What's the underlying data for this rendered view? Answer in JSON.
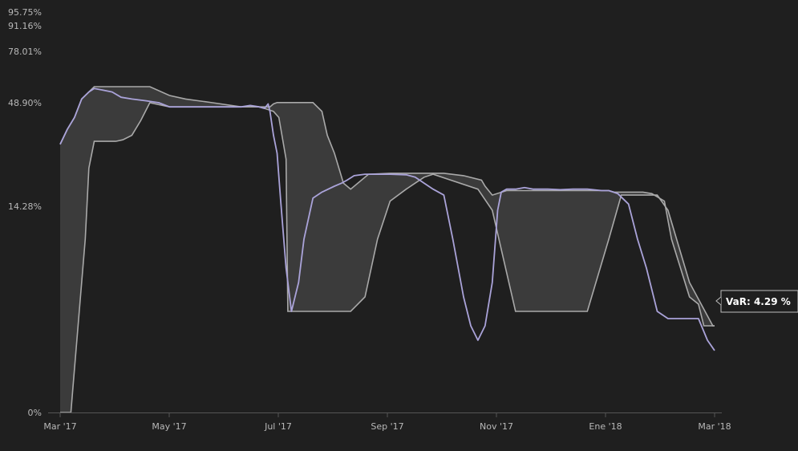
{
  "colors": {
    "background": "#1f1f1f",
    "band_fill": "#3b3b3b",
    "band_edge": "#a9a9a9",
    "var_line": "#aaa3d9",
    "axis": "#555555",
    "tooltip_bg": "#1f1f1f",
    "tooltip_border": "#bdbdbd"
  },
  "tooltip": {
    "text": "VaR: 4.29 %"
  },
  "chart_data": {
    "type": "area",
    "title": "",
    "xlabel": "",
    "ylabel": "",
    "grid": false,
    "x_ticks": [
      "Mar '17",
      "May '17",
      "Jul '17",
      "Sep '17",
      "Nov '17",
      "Ene '18",
      "Mar '18"
    ],
    "x_range": [
      "2017-03-01",
      "2018-03-01"
    ],
    "y_ticks": [
      "0%",
      "14.28%",
      "48.90%",
      "78.01%",
      "91.16%",
      "95.75%"
    ],
    "y_tick_values": [
      0,
      14.28,
      48.9,
      78.01,
      91.16,
      95.75
    ],
    "y_scale": "nonlinear (labelled at percentile ticks)",
    "series": [
      {
        "name": "VaR",
        "kind": "line",
        "dates": [
          "2017-03-01",
          "2017-03-05",
          "2017-03-09",
          "2017-03-13",
          "2017-03-17",
          "2017-03-20",
          "2017-03-25",
          "2017-03-30",
          "2017-04-04",
          "2017-04-10",
          "2017-04-18",
          "2017-04-25",
          "2017-05-01",
          "2017-05-10",
          "2017-05-25",
          "2017-06-10",
          "2017-06-15",
          "2017-06-20",
          "2017-06-23",
          "2017-06-25",
          "2017-06-26",
          "2017-06-28",
          "2017-06-30",
          "2017-07-02",
          "2017-07-05",
          "2017-07-08",
          "2017-07-12",
          "2017-07-15",
          "2017-07-20",
          "2017-07-25",
          "2017-08-01",
          "2017-08-05",
          "2017-08-08",
          "2017-08-12",
          "2017-08-18",
          "2017-08-25",
          "2017-09-01",
          "2017-09-10",
          "2017-09-15",
          "2017-09-20",
          "2017-09-25",
          "2017-10-01",
          "2017-10-06",
          "2017-10-12",
          "2017-10-16",
          "2017-10-20",
          "2017-10-24",
          "2017-10-28",
          "2017-10-31",
          "2017-11-02",
          "2017-11-05",
          "2017-11-10",
          "2017-11-15",
          "2017-11-20",
          "2017-11-28",
          "2017-12-05",
          "2017-12-12",
          "2017-12-20",
          "2017-12-28",
          "2018-01-01",
          "2018-01-06",
          "2018-01-12",
          "2018-01-17",
          "2018-01-22",
          "2018-01-28",
          "2018-02-03",
          "2018-02-08",
          "2018-02-15",
          "2018-02-20",
          "2018-02-25",
          "2018-03-01"
        ],
        "values": [
          35,
          40,
          44,
          51,
          55,
          57,
          56,
          55,
          52,
          51,
          50,
          48.9,
          47.5,
          47.5,
          47.5,
          47.5,
          48,
          47.5,
          47,
          48.5,
          46,
          38,
          32,
          16,
          10,
          7,
          9,
          12,
          17,
          19,
          21,
          22,
          23,
          24.5,
          25,
          25,
          25,
          24.8,
          24,
          22,
          20,
          18,
          12,
          8,
          6,
          5,
          6,
          9,
          14,
          19,
          20,
          20,
          20.5,
          20,
          20,
          19.8,
          20,
          20,
          19.5,
          19.5,
          18.5,
          15,
          12,
          10,
          7,
          6.5,
          6.5,
          6.5,
          6.5,
          5,
          4.29
        ]
      },
      {
        "name": "Upper band",
        "kind": "area-edge",
        "dates": [
          "2017-03-01",
          "2017-03-05",
          "2017-03-09",
          "2017-03-13",
          "2017-03-17",
          "2017-03-20",
          "2017-04-10",
          "2017-04-20",
          "2017-05-01",
          "2017-05-10",
          "2017-05-25",
          "2017-06-10",
          "2017-06-26",
          "2017-06-28",
          "2017-06-30",
          "2017-07-01",
          "2017-07-20",
          "2017-07-25",
          "2017-07-28",
          "2017-08-01",
          "2017-08-06",
          "2017-08-10",
          "2017-08-20",
          "2017-09-01",
          "2017-09-15",
          "2017-10-01",
          "2017-10-12",
          "2017-10-22",
          "2017-10-24",
          "2017-10-28",
          "2017-11-05",
          "2017-11-15",
          "2017-11-25",
          "2017-12-15",
          "2018-01-01",
          "2018-01-04",
          "2018-01-10",
          "2018-01-20",
          "2018-01-25",
          "2018-02-01",
          "2018-02-05",
          "2018-02-10",
          "2018-02-15",
          "2018-02-20",
          "2018-02-23",
          "2018-02-26",
          "2018-03-01"
        ],
        "values": [
          35,
          40,
          44,
          51,
          55,
          58,
          58,
          58,
          53,
          51,
          48.9,
          47.5,
          47.5,
          48.5,
          49,
          49,
          49,
          46,
          38,
          32,
          22,
          20,
          25,
          25.3,
          25.3,
          25.3,
          24.5,
          23,
          21,
          18,
          19.5,
          19.5,
          19.5,
          19.5,
          19.5,
          19,
          19,
          19,
          18.5,
          16,
          12,
          10,
          8,
          7.5,
          6,
          6,
          6
        ]
      },
      {
        "name": "Lower band",
        "kind": "area-edge",
        "dates": [
          "2017-03-01",
          "2017-03-02",
          "2017-03-07",
          "2017-03-08",
          "2017-03-15",
          "2017-03-17",
          "2017-03-20",
          "2017-04-01",
          "2017-04-05",
          "2017-04-10",
          "2017-04-15",
          "2017-04-20",
          "2017-05-01",
          "2017-06-10",
          "2017-06-20",
          "2017-06-23",
          "2017-06-28",
          "2017-07-01",
          "2017-07-05",
          "2017-07-06",
          "2017-07-10",
          "2017-07-15",
          "2017-08-01",
          "2017-08-10",
          "2017-08-18",
          "2017-08-25",
          "2017-09-01",
          "2017-09-10",
          "2017-09-15",
          "2017-09-20",
          "2017-09-25",
          "2017-10-20",
          "2017-10-28",
          "2017-11-10",
          "2017-11-25",
          "2017-12-01",
          "2017-12-10",
          "2017-12-20",
          "2018-01-01",
          "2018-01-08",
          "2018-01-15",
          "2018-01-22",
          "2018-01-28",
          "2018-02-03",
          "2018-02-15",
          "2018-02-28",
          "2018-03-01"
        ],
        "values": [
          0,
          0,
          0,
          1.5,
          12,
          27,
          36,
          36,
          36.5,
          38,
          43,
          48.9,
          47.5,
          47.5,
          47.5,
          47,
          46,
          44,
          30,
          7,
          7,
          7,
          7,
          7,
          8,
          12,
          16,
          20,
          22,
          24,
          25,
          20,
          14,
          7,
          7,
          7,
          7,
          7,
          12,
          18,
          18,
          18,
          18,
          14,
          9,
          6,
          6
        ]
      }
    ]
  }
}
